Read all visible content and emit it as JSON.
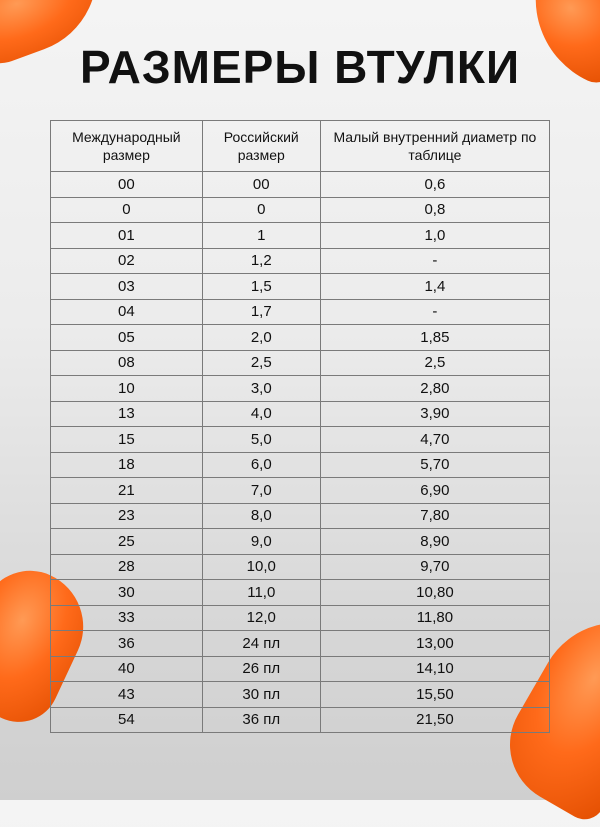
{
  "title": "РАЗМЕРЫ ВТУЛКИ",
  "accent_color": "#ff6a1a",
  "table": {
    "headers": [
      "Международный размер",
      "Российский размер",
      "Малый внутренний диаметр по таблице"
    ],
    "rows": [
      [
        "00",
        "00",
        "0,6"
      ],
      [
        "0",
        "0",
        "0,8"
      ],
      [
        "01",
        "1",
        "1,0"
      ],
      [
        "02",
        "1,2",
        "-"
      ],
      [
        "03",
        "1,5",
        "1,4"
      ],
      [
        "04",
        "1,7",
        "-"
      ],
      [
        "05",
        "2,0",
        "1,85"
      ],
      [
        "08",
        "2,5",
        "2,5"
      ],
      [
        "10",
        "3,0",
        "2,80"
      ],
      [
        "13",
        "4,0",
        "3,90"
      ],
      [
        "15",
        "5,0",
        "4,70"
      ],
      [
        "18",
        "6,0",
        "5,70"
      ],
      [
        "21",
        "7,0",
        "6,90"
      ],
      [
        "23",
        "8,0",
        "7,80"
      ],
      [
        "25",
        "9,0",
        "8,90"
      ],
      [
        "28",
        "10,0",
        "9,70"
      ],
      [
        "30",
        "11,0",
        "10,80"
      ],
      [
        "33",
        "12,0",
        "11,80"
      ],
      [
        "36",
        "24 пл",
        "13,00"
      ],
      [
        "40",
        "26 пл",
        "14,10"
      ],
      [
        "43",
        "30 пл",
        "15,50"
      ],
      [
        "54",
        "36 пл",
        "21,50"
      ]
    ]
  }
}
